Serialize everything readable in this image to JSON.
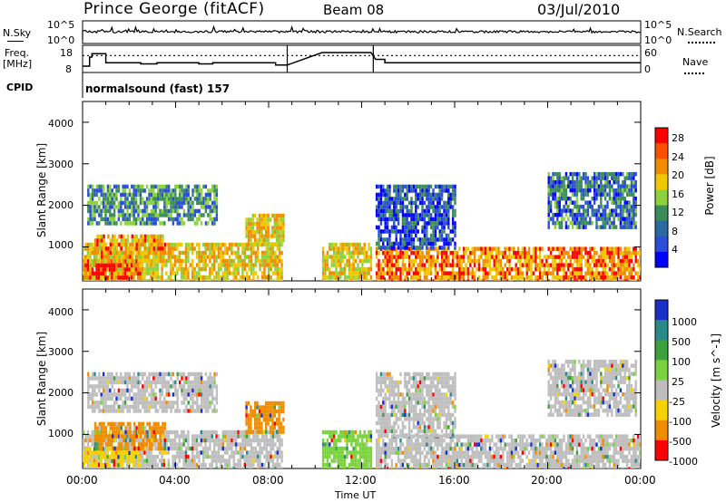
{
  "header": {
    "station": "Prince George (fitACF)",
    "beam": "Beam 08",
    "date": "03/Jul/2010"
  },
  "sky_panel": {
    "left_label": "N.Sky",
    "left_ticks": [
      "10^5",
      "10^0"
    ],
    "right_label": "N.Search",
    "right_ticks": [
      "10^5",
      "10^0"
    ]
  },
  "freq_panel": {
    "left_label_1": "Freq.",
    "left_label_2": "[MHz]",
    "left_ticks": [
      "18",
      "8"
    ],
    "right_label": "Nave",
    "right_ticks": [
      "60",
      "0"
    ]
  },
  "cpid": {
    "label": "CPID",
    "value": "normalsound (fast) 157"
  },
  "x_axis": {
    "label": "Time UT",
    "ticks": [
      "00:00",
      "04:00",
      "08:00",
      "12:00",
      "16:00",
      "20:00",
      "00:00"
    ]
  },
  "power_panel": {
    "ylabel": "Slant Range [km]",
    "yticks": [
      "1000",
      "2000",
      "3000",
      "4000"
    ],
    "colorbar_label": "Power [dB]",
    "colorbar_ticks": [
      "4",
      "8",
      "12",
      "16",
      "20",
      "24",
      "28"
    ]
  },
  "velocity_panel": {
    "ylabel": "Slant Range [km]",
    "yticks": [
      "1000",
      "2000",
      "3000",
      "4000"
    ],
    "colorbar_label": "Velocity [m s^-1]",
    "colorbar_ticks": [
      "1000",
      "500",
      "100",
      "25",
      "-25",
      "-100",
      "-500",
      "-1000"
    ]
  },
  "chart_data": {
    "type": "heatmap",
    "title": "Prince George (fitACF)  Beam 08  03/Jul/2010",
    "xlabel": "Time UT",
    "ylabel": "Slant Range [km]",
    "x_range_hours": [
      0,
      24
    ],
    "y_range_km": [
      180,
      4500
    ],
    "power_colorscale": [
      {
        "value": 4,
        "color": "#0000ff"
      },
      {
        "value": 8,
        "color": "#2a4ed8"
      },
      {
        "value": 12,
        "color": "#3c8c5a"
      },
      {
        "value": 16,
        "color": "#8cd23c"
      },
      {
        "value": 20,
        "color": "#f0c800"
      },
      {
        "value": 24,
        "color": "#f08c00"
      },
      {
        "value": 28,
        "color": "#ff0000"
      }
    ],
    "velocity_colorscale": [
      {
        "value": 1000,
        "color": "#1a2ec8"
      },
      {
        "value": 500,
        "color": "#2a8a8a"
      },
      {
        "value": 100,
        "color": "#3ca03c"
      },
      {
        "value": 25,
        "color": "#7ad23c"
      },
      {
        "value": -25,
        "color": "#bebebe"
      },
      {
        "value": -100,
        "color": "#f5d200"
      },
      {
        "value": -500,
        "color": "#f08c00"
      },
      {
        "value": -1000,
        "color": "#ff0000"
      }
    ],
    "nave_dotted_level": 40,
    "frequency_steps": [
      {
        "start_h": 0.0,
        "end_h": 0.3,
        "mhz": 10.0
      },
      {
        "start_h": 0.3,
        "end_h": 0.4,
        "mhz": 14.0
      },
      {
        "start_h": 0.4,
        "end_h": 1.0,
        "mhz": 15.5
      },
      {
        "start_h": 1.0,
        "end_h": 2.5,
        "mhz": 11.5
      },
      {
        "start_h": 2.5,
        "end_h": 3.2,
        "mhz": 11.0
      },
      {
        "start_h": 3.2,
        "end_h": 5.0,
        "mhz": 11.5
      },
      {
        "start_h": 5.0,
        "end_h": 5.6,
        "mhz": 11.0
      },
      {
        "start_h": 5.6,
        "end_h": 8.3,
        "mhz": 11.5
      },
      {
        "start_h": 8.3,
        "end_h": 8.8,
        "mhz": 10.5
      },
      {
        "start_h": 10.3,
        "end_h": 12.4,
        "mhz": 16.0
      },
      {
        "start_h": 12.6,
        "end_h": 13.0,
        "mhz": 13.0
      },
      {
        "start_h": 13.0,
        "end_h": 24.0,
        "mhz": 11.5
      }
    ],
    "data_gap_hours": [
      8.8,
      10.3
    ],
    "echo_regions": [
      {
        "id": "low-range-morning",
        "t0": 0.0,
        "t1": 8.6,
        "r0": 180,
        "r1": 1100,
        "power": 20,
        "velocity": -25
      },
      {
        "id": "low-range-morning-core",
        "t0": 0.0,
        "t1": 2.5,
        "r0": 250,
        "r1": 700,
        "power": 26,
        "velocity": -100
      },
      {
        "id": "mid-range-band",
        "t0": 0.2,
        "t1": 5.8,
        "r0": 1600,
        "r1": 2500,
        "power": 12,
        "velocity": -25
      },
      {
        "id": "far-band-patch",
        "t0": 7.0,
        "t1": 8.6,
        "r0": 1100,
        "r1": 1800,
        "power": 20,
        "velocity": -500
      },
      {
        "id": "morning-orange-flow",
        "t0": 0.5,
        "t1": 3.5,
        "r0": 700,
        "r1": 1300,
        "power": 22,
        "velocity": -500
      },
      {
        "id": "noon-block",
        "t0": 10.3,
        "t1": 12.4,
        "r0": 180,
        "r1": 1100,
        "power": 20,
        "velocity": 25
      },
      {
        "id": "afternoon-band",
        "t0": 12.6,
        "t1": 24.0,
        "r0": 180,
        "r1": 1000,
        "power": 24,
        "velocity": -25
      },
      {
        "id": "afternoon-scatter",
        "t0": 12.6,
        "t1": 16.0,
        "r0": 1000,
        "r1": 2500,
        "power": 8,
        "velocity": -25
      },
      {
        "id": "evening-patch",
        "t0": 20.0,
        "t1": 23.8,
        "r0": 1500,
        "r1": 2800,
        "power": 10,
        "velocity": -25
      }
    ]
  }
}
